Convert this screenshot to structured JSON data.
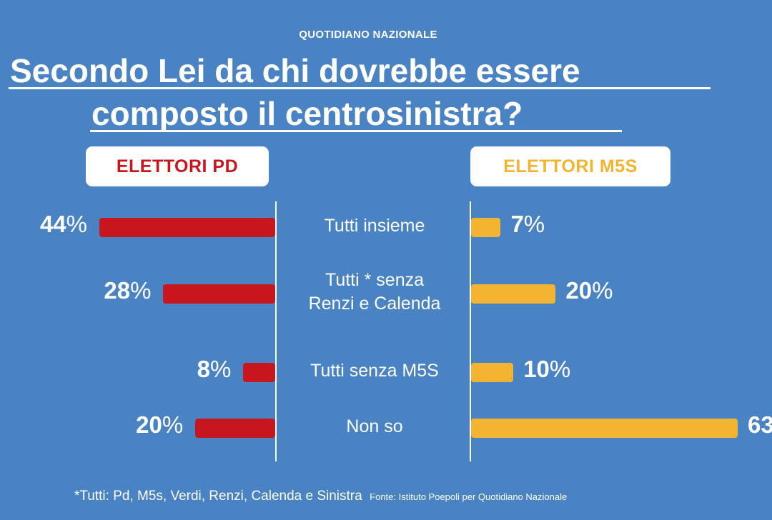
{
  "header": {
    "source": "QUOTIDIANO NAZIONALE",
    "title_line1": "Secondo Lei da chi dovrebbe essere",
    "title_line2": "composto il centrosinistra?"
  },
  "colors": {
    "background": "#4a83c3",
    "pd": "#c8161e",
    "m5s": "#f2b431",
    "text": "#ffffff"
  },
  "chart_data": {
    "type": "bar",
    "orientation": "horizontal-butterfly",
    "categories": [
      "Tutti insieme",
      "Tutti * senza\nRenzi e Calenda",
      "Tutti senza M5S",
      "Non so"
    ],
    "series": [
      {
        "name": "ELETTORI PD",
        "values": [
          44,
          28,
          8,
          20
        ]
      },
      {
        "name": "ELETTORI M5S",
        "values": [
          7,
          20,
          10,
          63
        ]
      }
    ],
    "unit": "%"
  },
  "footer": {
    "note": "*Tutti: Pd, M5s, Verdi, Renzi, Calenda e Sinistra",
    "fonte": "Fonte: Istituto Poepoli per Quotidiano Nazionale"
  }
}
